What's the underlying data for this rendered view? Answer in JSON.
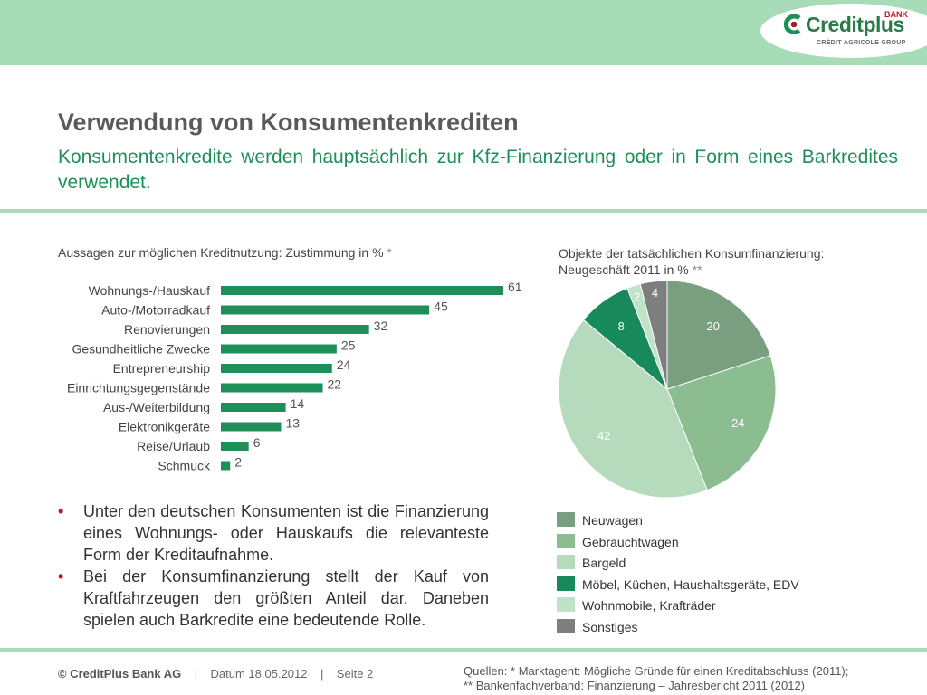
{
  "brand": {
    "name": "Creditplus",
    "badge": "BANK",
    "sub": "CRÉDIT AGRICOLE GROUP",
    "colors": {
      "green": "#1e8f58",
      "light_band": "#a8dcb8",
      "red": "#c0151b"
    }
  },
  "title": "Verwendung von Konsumentenkrediten",
  "subtitle": "Konsumentenkredite werden hauptsächlich zur Kfz-Finanzierung oder in Form eines Barkredites verwendet.",
  "bar_chart_title": "Aussagen zur möglichen Kreditnutzung: Zustimmung in %",
  "bar_chart_star": "*",
  "pie_chart_title_line1": "Objekte der tatsächlichen Konsumfinanzierung:",
  "pie_chart_title_line2": "Neugeschäft 2011 in %",
  "pie_chart_star": "**",
  "chart_data": [
    {
      "type": "bar",
      "orientation": "horizontal",
      "categories": [
        "Wohnungs-/Hauskauf",
        "Auto-/Motorradkauf",
        "Renovierungen",
        "Gesundheitliche Zwecke",
        "Entrepreneurship",
        "Einrichtungsgegenstände",
        "Aus-/Weiterbildung",
        "Elektronikgeräte",
        "Reise/Urlaub",
        "Schmuck"
      ],
      "values": [
        61,
        45,
        32,
        25,
        24,
        22,
        14,
        13,
        6,
        2
      ],
      "color": "#1e8f58"
    },
    {
      "type": "pie",
      "labels": [
        "Neuwagen",
        "Gebrauchtwagen",
        "Bargeld",
        "Möbel, Küchen, Haushaltsgeräte, EDV",
        "Wohnmobile, Krafträder",
        "Sonstiges"
      ],
      "values": [
        20,
        24,
        42,
        8,
        2,
        4
      ],
      "colors": [
        "#7a9e80",
        "#8cbd91",
        "#b5dabc",
        "#17895a",
        "#bfe3c6",
        "#7e7e7e"
      ],
      "legend": "bottom"
    }
  ],
  "bullets": [
    "Unter den deutschen Konsumenten ist die Finanzierung eines Wohnungs- oder Hauskaufs die relevanteste Form der Kreditaufnahme.",
    "Bei der Konsumfinanzierung stellt der Kauf von Kraftfahrzeugen den größten Anteil dar. Daneben spielen auch Barkredite eine bedeutende Rolle."
  ],
  "bullet_marker": "•",
  "footer": {
    "company": "© CreditPlus Bank AG",
    "separator": "|",
    "date": "Datum 18.05.2012",
    "page": "Seite 2",
    "sources_line1": "Quellen: * Marktagent: Mögliche Gründe für einen Kreditabschluss (2011);",
    "sources_line2": "** Bankenfachverband: Finanzierung – Jahresbericht 2011 (2012)"
  }
}
